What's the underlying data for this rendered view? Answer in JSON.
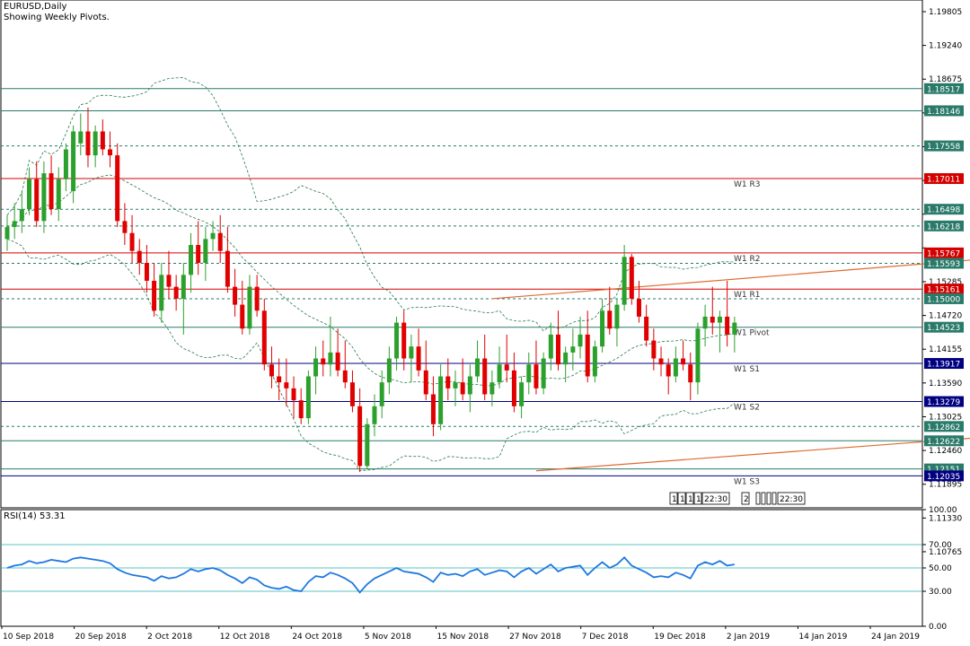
{
  "header": {
    "symbol_timeframe": "EURUSD,Daily",
    "indicator_note": "Showing Weekly Pivots."
  },
  "rsi_label": "RSI(14) 53.31",
  "colors": {
    "bull": "#2ca02c",
    "bear": "#e00000",
    "pivot_red": "#d40000",
    "level_teal": "#2a7a6a",
    "level_navy": "#000080",
    "trendline": "#e06a30",
    "band": "#2a7a4a",
    "rsi_line": "#1e78e0",
    "rsi_level": "#20b0b0"
  },
  "chart_data": [
    {
      "type": "candlestick",
      "ylim": [
        1.115,
        1.2
      ],
      "y_ticks": [
        "1.19805",
        "1.19240",
        "1.18675",
        "1.18110",
        "1.17545",
        "1.16980",
        "1.16415",
        "1.15850",
        "1.15285",
        "1.14720",
        "1.14155",
        "1.13590",
        "1.13025",
        "1.12460",
        "1.11895",
        "1.11330",
        "1.10765"
      ],
      "x_labels": [
        "10 Sep 2018",
        "20 Sep 2018",
        "2 Oct 2018",
        "12 Oct 2018",
        "24 Oct 2018",
        "5 Nov 2018",
        "15 Nov 2018",
        "27 Nov 2018",
        "7 Dec 2018",
        "19 Dec 2018",
        "2 Jan 2019",
        "14 Jan 2019",
        "24 Jan 2019"
      ],
      "price_tags": [
        {
          "value": 1.18517,
          "text": "1.18517",
          "style": "solid",
          "color": "teal"
        },
        {
          "value": 1.18146,
          "text": "1.18146",
          "style": "solid",
          "color": "teal"
        },
        {
          "value": 1.17558,
          "text": "1.17558",
          "style": "dashed",
          "color": "teal"
        },
        {
          "value": 1.17011,
          "text": "1.17011",
          "style": "solid",
          "color": "red"
        },
        {
          "value": 1.16498,
          "text": "1.16498",
          "style": "dashed",
          "color": "teal"
        },
        {
          "value": 1.16218,
          "text": "1.16218",
          "style": "dashed",
          "color": "teal"
        },
        {
          "value": 1.15767,
          "text": "1.15767",
          "style": "solid",
          "color": "red"
        },
        {
          "value": 1.15593,
          "text": "1.15593",
          "style": "dashed",
          "color": "teal"
        },
        {
          "value": 1.15161,
          "text": "1.15161",
          "style": "solid",
          "color": "red"
        },
        {
          "value": 1.15,
          "text": "1.15000",
          "style": "dashed",
          "color": "teal"
        },
        {
          "value": 1.14523,
          "text": "1.14523",
          "style": "solid",
          "color": "teal"
        },
        {
          "value": 1.13917,
          "text": "1.13917",
          "style": "solid",
          "color": "navy"
        },
        {
          "value": 1.13279,
          "text": "1.13279",
          "style": "solid",
          "color": "navy"
        },
        {
          "value": 1.12862,
          "text": "1.12862",
          "style": "dashed",
          "color": "teal"
        },
        {
          "value": 1.12622,
          "text": "1.12622",
          "style": "solid",
          "color": "teal"
        },
        {
          "value": 1.12151,
          "text": "1.12151",
          "style": "solid",
          "color": "teal"
        },
        {
          "value": 1.12035,
          "text": "1.12035",
          "style": "solid",
          "color": "navy"
        }
      ],
      "pivot_labels": [
        {
          "text": "W1 R3",
          "value": 1.17011
        },
        {
          "text": "W1 R2",
          "value": 1.15767
        },
        {
          "text": "W1 R1",
          "value": 1.15161
        },
        {
          "text": "W1 Pivot",
          "value": 1.14523
        },
        {
          "text": "W1 S1",
          "value": 1.13917
        },
        {
          "text": "W1 S2",
          "value": 1.13279
        },
        {
          "text": "W1 S3",
          "value": 1.12035
        }
      ],
      "trendlines": [
        {
          "from": {
            "bar": 66,
            "price": 1.15
          },
          "to": {
            "bar": 200,
            "price": 1.1633
          }
        },
        {
          "from": {
            "bar": 72,
            "price": 1.1212
          },
          "to": {
            "bar": 200,
            "price": 1.133
          }
        }
      ],
      "period_separators": {
        "left": [
          "1",
          "1",
          "1",
          "1",
          "22:30"
        ],
        "right": [
          "2",
          "",
          "",
          "",
          "",
          "22:30"
        ]
      },
      "candles": [
        [
          1.16,
          1.164,
          1.158,
          1.162
        ],
        [
          1.162,
          1.166,
          1.16,
          1.163
        ],
        [
          1.163,
          1.168,
          1.161,
          1.165
        ],
        [
          1.165,
          1.172,
          1.164,
          1.17
        ],
        [
          1.17,
          1.173,
          1.162,
          1.163
        ],
        [
          1.163,
          1.173,
          1.161,
          1.171
        ],
        [
          1.171,
          1.174,
          1.164,
          1.165
        ],
        [
          1.165,
          1.172,
          1.163,
          1.17
        ],
        [
          1.17,
          1.176,
          1.168,
          1.175
        ],
        [
          1.168,
          1.179,
          1.166,
          1.178
        ],
        [
          1.176,
          1.181,
          1.174,
          1.178
        ],
        [
          1.178,
          1.182,
          1.172,
          1.174
        ],
        [
          1.174,
          1.179,
          1.172,
          1.178
        ],
        [
          1.178,
          1.18,
          1.174,
          1.175
        ],
        [
          1.175,
          1.178,
          1.172,
          1.174
        ],
        [
          1.174,
          1.176,
          1.162,
          1.163
        ],
        [
          1.163,
          1.166,
          1.159,
          1.161
        ],
        [
          1.161,
          1.164,
          1.156,
          1.158
        ],
        [
          1.158,
          1.16,
          1.154,
          1.156
        ],
        [
          1.156,
          1.159,
          1.151,
          1.153
        ],
        [
          1.153,
          1.156,
          1.147,
          1.148
        ],
        [
          1.148,
          1.156,
          1.146,
          1.154
        ],
        [
          1.154,
          1.158,
          1.15,
          1.152
        ],
        [
          1.152,
          1.154,
          1.148,
          1.15
        ],
        [
          1.15,
          1.156,
          1.144,
          1.154
        ],
        [
          1.154,
          1.161,
          1.151,
          1.159
        ],
        [
          1.159,
          1.163,
          1.154,
          1.156
        ],
        [
          1.156,
          1.162,
          1.153,
          1.16
        ],
        [
          1.16,
          1.163,
          1.158,
          1.161
        ],
        [
          1.161,
          1.164,
          1.156,
          1.158
        ],
        [
          1.158,
          1.162,
          1.151,
          1.152
        ],
        [
          1.152,
          1.155,
          1.147,
          1.149
        ],
        [
          1.149,
          1.153,
          1.144,
          1.145
        ],
        [
          1.145,
          1.154,
          1.144,
          1.152
        ],
        [
          1.152,
          1.154,
          1.147,
          1.148
        ],
        [
          1.148,
          1.15,
          1.138,
          1.139
        ],
        [
          1.139,
          1.142,
          1.135,
          1.137
        ],
        [
          1.137,
          1.14,
          1.133,
          1.136
        ],
        [
          1.136,
          1.14,
          1.132,
          1.135
        ],
        [
          1.135,
          1.137,
          1.13,
          1.133
        ],
        [
          1.133,
          1.135,
          1.129,
          1.13
        ],
        [
          1.13,
          1.138,
          1.129,
          1.137
        ],
        [
          1.137,
          1.142,
          1.134,
          1.14
        ],
        [
          1.14,
          1.143,
          1.137,
          1.139
        ],
        [
          1.139,
          1.147,
          1.137,
          1.141
        ],
        [
          1.141,
          1.145,
          1.137,
          1.138
        ],
        [
          1.138,
          1.143,
          1.135,
          1.136
        ],
        [
          1.136,
          1.138,
          1.131,
          1.132
        ],
        [
          1.132,
          1.135,
          1.121,
          1.122
        ],
        [
          1.122,
          1.13,
          1.1215,
          1.129
        ],
        [
          1.129,
          1.134,
          1.127,
          1.132
        ],
        [
          1.132,
          1.138,
          1.13,
          1.136
        ],
        [
          1.136,
          1.142,
          1.134,
          1.14
        ],
        [
          1.14,
          1.147,
          1.138,
          1.146
        ],
        [
          1.146,
          1.148,
          1.138,
          1.14
        ],
        [
          1.14,
          1.144,
          1.136,
          1.142
        ],
        [
          1.142,
          1.145,
          1.137,
          1.138
        ],
        [
          1.138,
          1.143,
          1.133,
          1.134
        ],
        [
          1.134,
          1.137,
          1.127,
          1.129
        ],
        [
          1.129,
          1.139,
          1.128,
          1.137
        ],
        [
          1.137,
          1.14,
          1.133,
          1.135
        ],
        [
          1.135,
          1.138,
          1.132,
          1.136
        ],
        [
          1.136,
          1.14,
          1.133,
          1.134
        ],
        [
          1.134,
          1.139,
          1.131,
          1.137
        ],
        [
          1.137,
          1.143,
          1.136,
          1.14
        ],
        [
          1.14,
          1.144,
          1.133,
          1.134
        ],
        [
          1.134,
          1.138,
          1.132,
          1.136
        ],
        [
          1.136,
          1.142,
          1.135,
          1.139
        ],
        [
          1.139,
          1.144,
          1.136,
          1.138
        ],
        [
          1.138,
          1.141,
          1.131,
          1.132
        ],
        [
          1.132,
          1.137,
          1.13,
          1.136
        ],
        [
          1.136,
          1.141,
          1.134,
          1.139
        ],
        [
          1.139,
          1.143,
          1.134,
          1.135
        ],
        [
          1.135,
          1.141,
          1.134,
          1.14
        ],
        [
          1.14,
          1.146,
          1.138,
          1.144
        ],
        [
          1.144,
          1.148,
          1.138,
          1.139
        ],
        [
          1.139,
          1.142,
          1.136,
          1.141
        ],
        [
          1.141,
          1.145,
          1.138,
          1.142
        ],
        [
          1.142,
          1.147,
          1.14,
          1.144
        ],
        [
          1.144,
          1.148,
          1.136,
          1.137
        ],
        [
          1.137,
          1.143,
          1.136,
          1.142
        ],
        [
          1.142,
          1.15,
          1.141,
          1.148
        ],
        [
          1.148,
          1.152,
          1.144,
          1.145
        ],
        [
          1.145,
          1.15,
          1.142,
          1.149
        ],
        [
          1.149,
          1.159,
          1.148,
          1.157
        ],
        [
          1.157,
          1.1575,
          1.149,
          1.15
        ],
        [
          1.15,
          1.153,
          1.146,
          1.147
        ],
        [
          1.147,
          1.149,
          1.142,
          1.143
        ],
        [
          1.143,
          1.145,
          1.138,
          1.14
        ],
        [
          1.14,
          1.142,
          1.137,
          1.139
        ],
        [
          1.139,
          1.14,
          1.134,
          1.137
        ],
        [
          1.137,
          1.142,
          1.136,
          1.14
        ],
        [
          1.14,
          1.143,
          1.138,
          1.139
        ],
        [
          1.139,
          1.141,
          1.133,
          1.136
        ],
        [
          1.136,
          1.146,
          1.134,
          1.145
        ],
        [
          1.145,
          1.149,
          1.142,
          1.147
        ],
        [
          1.147,
          1.152,
          1.144,
          1.146
        ],
        [
          1.146,
          1.148,
          1.141,
          1.147
        ],
        [
          1.147,
          1.153,
          1.142,
          1.144
        ],
        [
          1.144,
          1.147,
          1.141,
          1.146
        ]
      ]
    },
    {
      "type": "line",
      "title": "RSI(14) 53.31",
      "ylim": [
        0,
        100
      ],
      "y_ticks": [
        "100.00",
        "70.00",
        "50.00",
        "30.00",
        "0.00"
      ],
      "levels": [
        70,
        50,
        30
      ],
      "series": [
        {
          "values": [
            50,
            52,
            53,
            56,
            54,
            55,
            57,
            56,
            55,
            58,
            59,
            58,
            57,
            56,
            54,
            49,
            46,
            44,
            43,
            42,
            39,
            43,
            41,
            42,
            45,
            49,
            47,
            49,
            50,
            48,
            44,
            41,
            37,
            42,
            40,
            35,
            33,
            32,
            34,
            31,
            30,
            38,
            43,
            42,
            46,
            44,
            41,
            37,
            29,
            36,
            41,
            44,
            47,
            50,
            47,
            46,
            45,
            42,
            38,
            46,
            44,
            45,
            43,
            47,
            49,
            44,
            46,
            48,
            47,
            42,
            47,
            50,
            45,
            49,
            53,
            47,
            50,
            51,
            52,
            44,
            50,
            55,
            50,
            53,
            59,
            52,
            49,
            46,
            42,
            43,
            42,
            46,
            44,
            41,
            52,
            55,
            53,
            56,
            52,
            53
          ]
        }
      ]
    }
  ]
}
